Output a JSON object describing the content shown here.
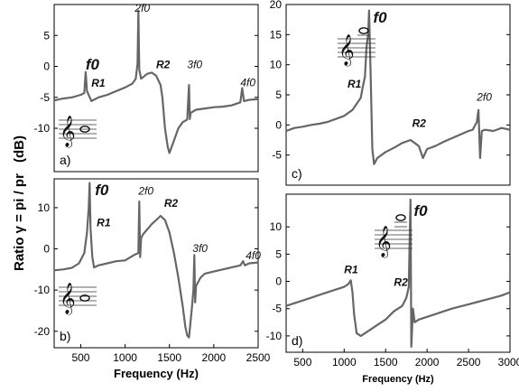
{
  "figure": {
    "ylabel_main": "Ratio γ = pi / pr",
    "ylabel_unit": "(dB)",
    "accent_color": "#666666"
  },
  "chart_data": [
    {
      "id": "a",
      "type": "line",
      "panel_label": "a)",
      "xlim": [
        200,
        2500
      ],
      "ylim": [
        -17,
        10
      ],
      "yticks": [
        5,
        0,
        -5,
        -10
      ],
      "xticks": [],
      "xlabel": "",
      "clef": {
        "note": "whole-note",
        "position": "below-staff"
      },
      "annotations": [
        {
          "text": "f0",
          "x": 555,
          "y": -0.5,
          "style": "bold-italic-serif"
        },
        {
          "text": "R1",
          "x": 620,
          "y": -3.3,
          "style": "bold-italic"
        },
        {
          "text": "2f0",
          "x": 1110,
          "y": 8.8,
          "style": "italic-serif"
        },
        {
          "text": "R2",
          "x": 1350,
          "y": -0.3,
          "style": "bold-italic"
        },
        {
          "text": "3f0",
          "x": 1700,
          "y": -0.3,
          "style": "italic-serif"
        },
        {
          "text": "4f0",
          "x": 2300,
          "y": -3.2,
          "style": "italic-serif"
        }
      ],
      "series": [
        {
          "x": [
            200,
            300,
            400,
            500,
            540,
            555,
            570,
            620,
            700,
            800,
            900,
            1000,
            1080,
            1120,
            1140,
            1150,
            1160,
            1180,
            1250,
            1300,
            1350,
            1400,
            1420,
            1450,
            1480,
            1500,
            1550,
            1600,
            1650,
            1700,
            1720,
            1730,
            1740,
            1800,
            1900,
            2000,
            2100,
            2200,
            2300,
            2320,
            2340,
            2400,
            2500
          ],
          "y": [
            -5.5,
            -5.2,
            -5.0,
            -4.6,
            -4.3,
            -0.9,
            -4.0,
            -5.6,
            -5.0,
            -4.6,
            -4.0,
            -3.4,
            -2.8,
            -2.0,
            0.5,
            9.0,
            -0.5,
            -2.0,
            -1.2,
            -1.0,
            -1.5,
            -3.0,
            -5.0,
            -10.0,
            -13.0,
            -14.0,
            -12.0,
            -10.0,
            -9.0,
            -8.6,
            -3.0,
            -8.5,
            -7.5,
            -7.0,
            -6.8,
            -6.6,
            -6.5,
            -6.3,
            -5.8,
            -3.5,
            -5.6,
            -5.4,
            -5.3
          ]
        }
      ]
    },
    {
      "id": "b",
      "type": "line",
      "panel_label": "b)",
      "xlim": [
        200,
        2500
      ],
      "ylim": [
        -24,
        17
      ],
      "yticks": [
        10,
        0,
        -10,
        -20
      ],
      "xticks": [
        500,
        1000,
        1500,
        2000,
        2500
      ],
      "xlabel": "Frequency (Hz)",
      "clef": {
        "note": "whole-note",
        "position": "in-staff"
      },
      "annotations": [
        {
          "text": "f0",
          "x": 660,
          "y": 13.0,
          "style": "bold-italic-serif"
        },
        {
          "text": "R1",
          "x": 680,
          "y": 5.5,
          "style": "bold-italic"
        },
        {
          "text": "2f0",
          "x": 1150,
          "y": 13.2,
          "style": "italic-serif"
        },
        {
          "text": "R2",
          "x": 1440,
          "y": 10.2,
          "style": "bold-italic"
        },
        {
          "text": "3f0",
          "x": 1760,
          "y": -0.8,
          "style": "italic-serif"
        },
        {
          "text": "4f0",
          "x": 2360,
          "y": -2.5,
          "style": "italic-serif"
        }
      ],
      "series": [
        {
          "x": [
            200,
            300,
            400,
            480,
            540,
            570,
            590,
            600,
            610,
            630,
            650,
            700,
            800,
            900,
            1000,
            1100,
            1150,
            1160,
            1170,
            1180,
            1200,
            1300,
            1400,
            1450,
            1500,
            1550,
            1600,
            1650,
            1680,
            1700,
            1720,
            1750,
            1770,
            1780,
            1790,
            1800,
            1850,
            1900,
            2000,
            2100,
            2200,
            2300,
            2330,
            2350,
            2400,
            2500
          ],
          "y": [
            -5.2,
            -5.0,
            -4.6,
            -3.5,
            -1.0,
            4.0,
            10.0,
            16.0,
            5.0,
            -2.0,
            -4.5,
            -4.0,
            -3.5,
            -3.0,
            -2.8,
            -1.5,
            -1.0,
            11.5,
            -2.0,
            2.5,
            3.5,
            6.0,
            8.0,
            7.0,
            4.0,
            -1.0,
            -7.0,
            -14.0,
            -19.0,
            -21.0,
            -21.5,
            -15.0,
            -10.0,
            -1.5,
            -13.0,
            -9.0,
            -7.0,
            -6.0,
            -5.5,
            -5.0,
            -4.5,
            -4.0,
            -3.0,
            -4.0,
            -3.5,
            -3.3
          ]
        }
      ]
    },
    {
      "id": "c",
      "type": "line",
      "panel_label": "c)",
      "xlim": [
        300,
        3000
      ],
      "ylim": [
        -10,
        20
      ],
      "yticks": [
        20,
        15,
        10,
        5,
        0,
        -5
      ],
      "xticks": [],
      "xlabel": "",
      "clef": {
        "note": "whole-note",
        "position": "above-staff"
      },
      "annotations": [
        {
          "text": "f0",
          "x": 1350,
          "y": 17.0,
          "style": "bold-italic-serif"
        },
        {
          "text": "R1",
          "x": 1040,
          "y": 6.2,
          "style": "bold-italic"
        },
        {
          "text": "R2",
          "x": 1820,
          "y": -0.3,
          "style": "bold-italic"
        },
        {
          "text": "2f0",
          "x": 2600,
          "y": 4.0,
          "style": "italic-serif"
        }
      ],
      "series": [
        {
          "x": [
            300,
            400,
            500,
            600,
            700,
            800,
            900,
            1000,
            1100,
            1150,
            1200,
            1220,
            1250,
            1270,
            1290,
            1300,
            1320,
            1340,
            1360,
            1400,
            1500,
            1600,
            1700,
            1800,
            1850,
            1900,
            1950,
            2000,
            2100,
            2200,
            2300,
            2400,
            2500,
            2550,
            2600,
            2620,
            2640,
            2660,
            2700,
            2800,
            2900,
            3000
          ],
          "y": [
            -1.0,
            -0.5,
            -0.3,
            0.0,
            0.2,
            0.5,
            1.0,
            1.5,
            2.5,
            3.5,
            4.5,
            6.0,
            8.0,
            13.0,
            15.0,
            19.0,
            8.0,
            -4.0,
            -6.5,
            -5.5,
            -4.5,
            -3.8,
            -3.0,
            -2.5,
            -3.0,
            -3.5,
            -5.5,
            -4.0,
            -3.5,
            -2.8,
            -2.2,
            -1.6,
            -1.0,
            -0.8,
            0.5,
            2.5,
            -5.5,
            -1.0,
            -0.8,
            -1.0,
            -0.5,
            -0.8
          ]
        }
      ]
    },
    {
      "id": "d",
      "type": "line",
      "panel_label": "d)",
      "xlim": [
        300,
        3000
      ],
      "ylim": [
        -13,
        16
      ],
      "yticks": [
        10,
        5,
        0,
        -5,
        -10
      ],
      "xticks": [
        500,
        1000,
        1500,
        2000,
        2500,
        3000
      ],
      "xlabel": "Frequency (Hz)",
      "clef": {
        "note": "whole-note",
        "position": "high-above-staff"
      },
      "annotations": [
        {
          "text": "f0",
          "x": 1840,
          "y": 12.0,
          "style": "bold-italic-serif"
        },
        {
          "text": "R1",
          "x": 1000,
          "y": 1.5,
          "style": "bold-italic"
        },
        {
          "text": "R2",
          "x": 1600,
          "y": -0.8,
          "style": "bold-italic"
        },
        {
          "text": "1500",
          "x": 1500,
          "y": -12.9,
          "style": "tick"
        }
      ],
      "series": [
        {
          "x": [
            300,
            400,
            500,
            600,
            700,
            800,
            900,
            1000,
            1050,
            1080,
            1100,
            1120,
            1150,
            1200,
            1300,
            1400,
            1500,
            1600,
            1700,
            1750,
            1780,
            1790,
            1800,
            1810,
            1830,
            1850,
            1900,
            2000,
            2100,
            2200,
            2300,
            2400,
            2500,
            2600,
            2700,
            2800,
            2900,
            3000
          ],
          "y": [
            -4.5,
            -4.0,
            -3.5,
            -3.0,
            -2.5,
            -2.0,
            -1.5,
            -1.0,
            -0.5,
            0.2,
            -2.0,
            -6.0,
            -9.5,
            -10.0,
            -9.0,
            -8.0,
            -7.0,
            -5.5,
            -4.5,
            -3.0,
            -1.0,
            8.0,
            15.0,
            -12.0,
            -5.0,
            -7.5,
            -7.0,
            -6.5,
            -6.0,
            -5.5,
            -5.0,
            -4.6,
            -4.2,
            -3.8,
            -3.4,
            -3.0,
            -2.6,
            -2.0
          ]
        }
      ]
    }
  ]
}
